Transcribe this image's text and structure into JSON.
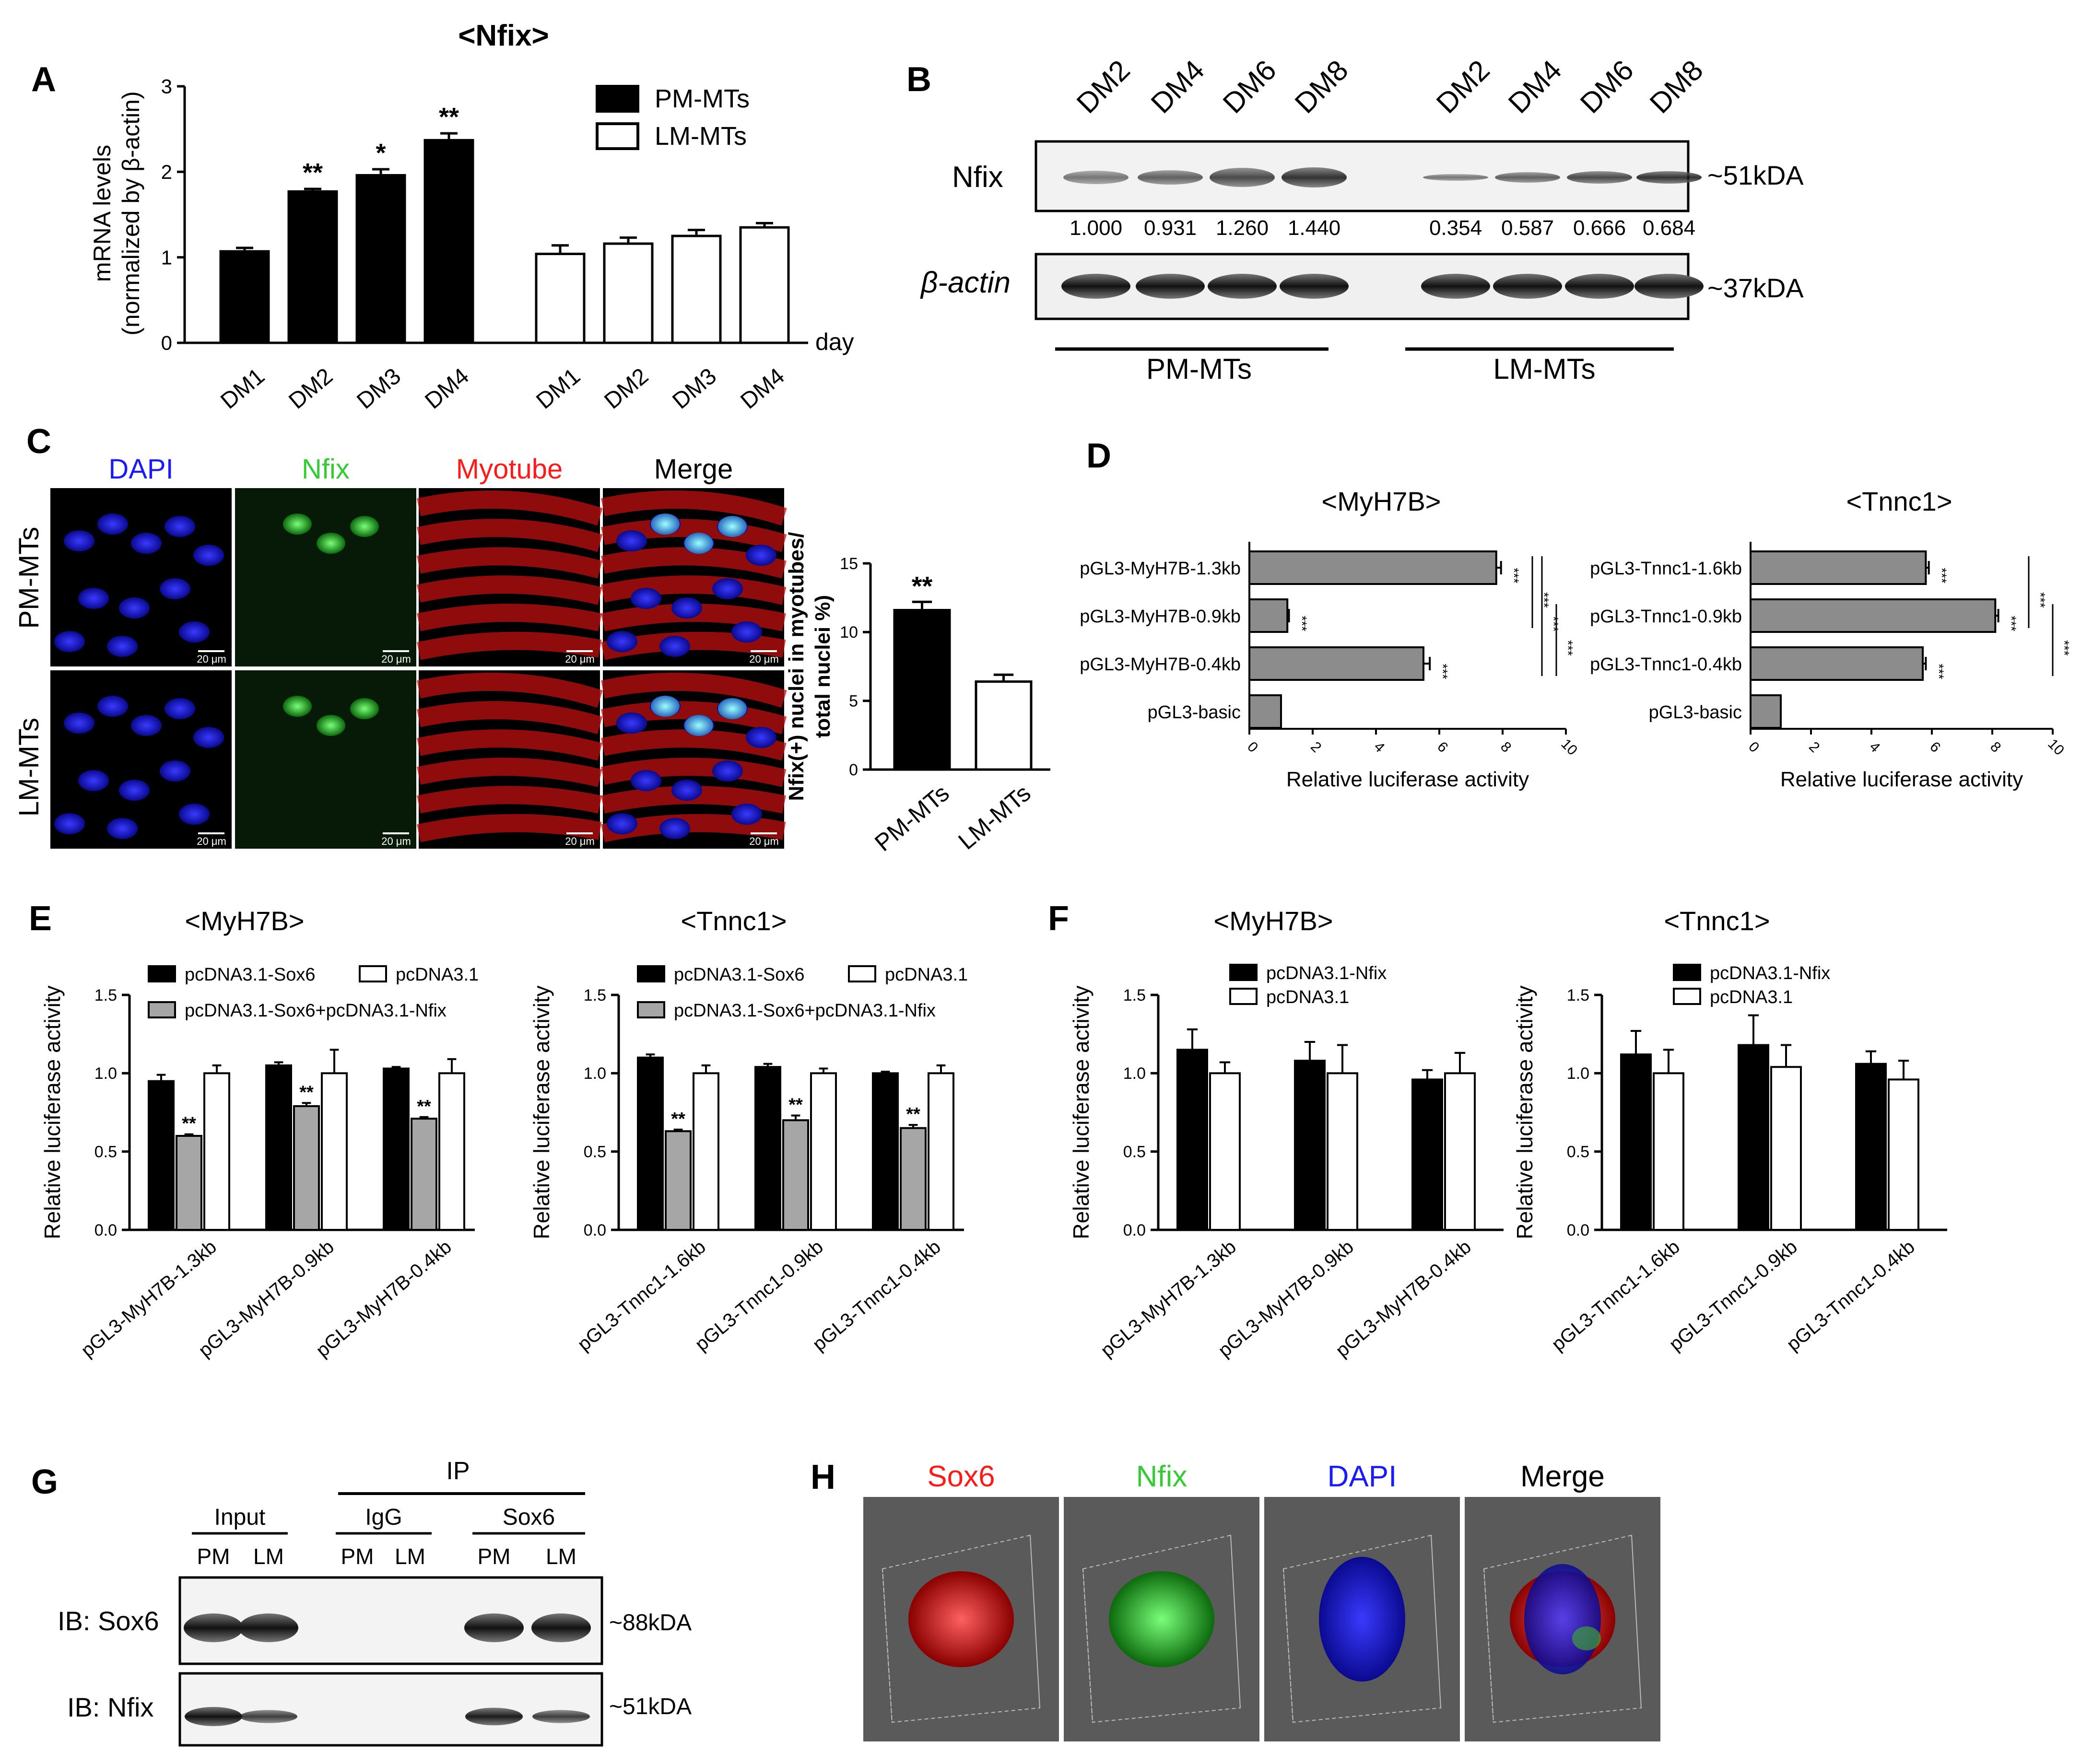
{
  "panelA": {
    "letter": "A",
    "title": "<Nfix>",
    "ylabel1": "mRNA levels",
    "ylabel2": "(normalized by  β-actin)",
    "xunit": "day",
    "chart_data": {
      "type": "bar",
      "title": "<Nfix>",
      "ylim": [
        0,
        3
      ],
      "yticks": [
        "0",
        "1",
        "2",
        "3"
      ],
      "categories": [
        "DM1",
        "DM2",
        "DM3",
        "DM4"
      ],
      "series": [
        {
          "name": "PM-MTs",
          "color": "#000000",
          "values": [
            1.07,
            1.77,
            1.96,
            2.37
          ],
          "errors": [
            0.04,
            0.03,
            0.07,
            0.08
          ],
          "sig": [
            "",
            "**",
            "*",
            "**"
          ]
        },
        {
          "name": "LM-MTs",
          "color": "#ffffff",
          "values": [
            1.04,
            1.16,
            1.25,
            1.35
          ],
          "errors": [
            0.1,
            0.07,
            0.07,
            0.05
          ],
          "sig": [
            "",
            "",
            "",
            ""
          ]
        }
      ]
    }
  },
  "panelB": {
    "letter": "B",
    "lanes": [
      "DM2",
      "DM4",
      "DM6",
      "DM8",
      "DM2",
      "DM4",
      "DM6",
      "DM8"
    ],
    "row1": "Nfix",
    "row2": "β-actin",
    "quant": [
      "1.000",
      "0.931",
      "1.260",
      "1.440",
      "0.354",
      "0.587",
      "0.666",
      "0.684"
    ],
    "mw1": "~51kDA",
    "mw2": "~37kDA",
    "group1": "PM-MTs",
    "group2": "LM-MTs"
  },
  "panelC": {
    "letter": "C",
    "cols": [
      "DAPI",
      "Nfix",
      "Myotube",
      "Merge"
    ],
    "col_colors": [
      "#1a1aff",
      "#33cc33",
      "#ff1a1a",
      "#000000"
    ],
    "rows": [
      "PM-MTs",
      "LM-MTs"
    ],
    "scale": "20 μm",
    "ylabel1": "Nfix(+) nuclei in myotubes/",
    "ylabel2": "total nuclei %)",
    "chart_data": {
      "type": "bar",
      "ylim": [
        0,
        15
      ],
      "yticks": [
        "0",
        "5",
        "10",
        "15"
      ],
      "categories": [
        "PM-MTs",
        "LM-MTs"
      ],
      "values": [
        11.6,
        6.4
      ],
      "errors": [
        0.6,
        0.5
      ],
      "sig": [
        "**",
        ""
      ]
    }
  },
  "panelD": {
    "letter": "D",
    "xlabel": "Relative luciferase activity",
    "sig": "***",
    "xticks": [
      "0",
      "2",
      "4",
      "6",
      "8",
      "10"
    ],
    "chart_data": [
      {
        "type": "bar",
        "title": "<MyH7B>",
        "xlim": [
          0,
          10
        ],
        "categories": [
          "pGL3-MyH7B-1.3kb",
          "pGL3-MyH7B-0.9kb",
          "pGL3-MyH7B-0.4kb",
          "pGL3-basic"
        ],
        "values": [
          7.8,
          1.2,
          5.5,
          1.0
        ],
        "errors": [
          0.15,
          0.05,
          0.2,
          0
        ]
      },
      {
        "type": "bar",
        "title": "<Tnnc1>",
        "xlim": [
          0,
          10
        ],
        "categories": [
          "pGL3-Tnnc1-1.6kb",
          "pGL3-Tnnc1-0.9kb",
          "pGL3-Tnnc1-0.4kb",
          "pGL3-basic"
        ],
        "values": [
          5.8,
          8.1,
          5.7,
          1.0
        ],
        "errors": [
          0.1,
          0.1,
          0.1,
          0
        ]
      }
    ]
  },
  "panelE": {
    "letter": "E",
    "ylabel": "Relative luciferase activity",
    "yticks": [
      "0.0",
      "0.5",
      "1.0",
      "1.5"
    ],
    "legend": [
      "pcDNA3.1-Sox6",
      "pcDNA3.1",
      "pcDNA3.1-Sox6+pcDNA3.1-Nfix"
    ],
    "colors": [
      "#000000",
      "#ffffff",
      "#a6a6a6"
    ],
    "chart_data": [
      {
        "type": "bar",
        "title": "<MyH7B>",
        "ylim": [
          0,
          1.5
        ],
        "categories": [
          "pGL3-MyH7B-1.3kb",
          "pGL3-MyH7B-0.9kb",
          "pGL3-MyH7B-0.4kb"
        ],
        "series": [
          {
            "name": "pcDNA3.1-Sox6",
            "values": [
              0.95,
              1.05,
              1.03
            ],
            "errors": [
              0.04,
              0.02,
              0.01
            ]
          },
          {
            "name": "pcDNA3.1-Sox6+pcDNA3.1-Nfix",
            "values": [
              0.6,
              0.79,
              0.71
            ],
            "errors": [
              0.01,
              0.02,
              0.01
            ],
            "sig": [
              "**",
              "**",
              "**"
            ]
          },
          {
            "name": "pcDNA3.1",
            "values": [
              1.0,
              1.0,
              1.0
            ],
            "errors": [
              0.05,
              0.15,
              0.09
            ]
          }
        ]
      },
      {
        "type": "bar",
        "title": "<Tnnc1>",
        "ylim": [
          0,
          1.5
        ],
        "categories": [
          "pGL3-Tnnc1-1.6kb",
          "pGL3-Tnnc1-0.9kb",
          "pGL3-Tnnc1-0.4kb"
        ],
        "series": [
          {
            "name": "pcDNA3.1-Sox6",
            "values": [
              1.1,
              1.04,
              1.0
            ],
            "errors": [
              0.02,
              0.02,
              0.01
            ]
          },
          {
            "name": "pcDNA3.1-Sox6+pcDNA3.1-Nfix",
            "values": [
              0.63,
              0.7,
              0.65
            ],
            "errors": [
              0.01,
              0.03,
              0.02
            ],
            "sig": [
              "**",
              "**",
              "**"
            ]
          },
          {
            "name": "pcDNA3.1",
            "values": [
              1.0,
              1.0,
              1.0
            ],
            "errors": [
              0.05,
              0.03,
              0.05
            ]
          }
        ]
      }
    ]
  },
  "panelF": {
    "letter": "F",
    "ylabel": "Relative luciferase activity",
    "yticks": [
      "0.0",
      "0.5",
      "1.0",
      "1.5"
    ],
    "legend": [
      "pcDNA3.1-Nfix",
      "pcDNA3.1"
    ],
    "chart_data": [
      {
        "type": "bar",
        "title": "<MyH7B>",
        "ylim": [
          0,
          1.5
        ],
        "categories": [
          "pGL3-MyH7B-1.3kb",
          "pGL3-MyH7B-0.9kb",
          "pGL3-MyH7B-0.4kb"
        ],
        "series": [
          {
            "name": "pcDNA3.1-Nfix",
            "values": [
              1.15,
              1.08,
              0.96
            ],
            "errors": [
              0.13,
              0.12,
              0.06
            ]
          },
          {
            "name": "pcDNA3.1",
            "values": [
              1.0,
              1.0,
              1.0
            ],
            "errors": [
              0.07,
              0.18,
              0.13
            ]
          }
        ]
      },
      {
        "type": "bar",
        "title": "<Tnnc1>",
        "ylim": [
          0,
          1.5
        ],
        "categories": [
          "pGL3-Tnnc1-1.6kb",
          "pGL3-Tnnc1-0.9kb",
          "pGL3-Tnnc1-0.4kb"
        ],
        "series": [
          {
            "name": "pcDNA3.1-Nfix",
            "values": [
              1.12,
              1.18,
              1.06
            ],
            "errors": [
              0.15,
              0.19,
              0.08
            ]
          },
          {
            "name": "pcDNA3.1",
            "values": [
              1.0,
              1.04,
              0.96
            ],
            "errors": [
              0.15,
              0.14,
              0.12
            ]
          }
        ]
      }
    ]
  },
  "panelG": {
    "letter": "G",
    "ip": "IP",
    "groups": [
      "Input",
      "IgG",
      "Sox6"
    ],
    "lanes": [
      "PM",
      "LM",
      "PM",
      "LM",
      "PM",
      "LM"
    ],
    "row1": "IB: Sox6",
    "row2": "IB: Nfix",
    "mw1": "~88kDA",
    "mw2": "~51kDA"
  },
  "panelH": {
    "letter": "H",
    "cols": [
      "Sox6",
      "Nfix",
      "DAPI",
      "Merge"
    ],
    "col_colors": [
      "#ff1a1a",
      "#33cc33",
      "#1a1aff",
      "#000000"
    ]
  }
}
